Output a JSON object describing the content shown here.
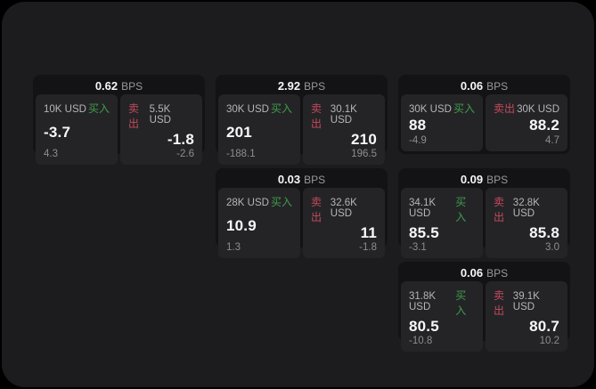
{
  "theme": {
    "page_bg": "#000000",
    "panel_bg": "#1c1c1e",
    "card_bg": "#131315",
    "tile_bg": "#242427",
    "text_primary": "#f8f8f9",
    "text_secondary": "#b5b5ba",
    "text_muted": "#8d8d92",
    "buy_color": "#3f9d4a",
    "sell_color": "#c54a5c"
  },
  "labels": {
    "bps": "BPS",
    "buy": "买入",
    "sell": "卖出"
  },
  "cards": [
    {
      "row": 1,
      "col": 1,
      "bps": "0.62",
      "buy": {
        "size": "10K USD",
        "price": "-3.7",
        "delta": "4.3"
      },
      "sell": {
        "size": "5.5K USD",
        "price": "-1.8",
        "delta": "-2.6"
      }
    },
    {
      "row": 1,
      "col": 2,
      "bps": "2.92",
      "buy": {
        "size": "30K USD",
        "price": "201",
        "delta": "-188.1"
      },
      "sell": {
        "size": "30.1K USD",
        "price": "210",
        "delta": "196.5"
      }
    },
    {
      "row": 1,
      "col": 3,
      "bps": "0.06",
      "buy": {
        "size": "30K USD",
        "price": "88",
        "delta": "-4.9"
      },
      "sell": {
        "size": "30K USD",
        "price": "88.2",
        "delta": "4.7"
      }
    },
    {
      "row": 2,
      "col": 2,
      "bps": "0.03",
      "buy": {
        "size": "28K USD",
        "price": "10.9",
        "delta": "1.3"
      },
      "sell": {
        "size": "32.6K USD",
        "price": "11",
        "delta": "-1.8"
      }
    },
    {
      "row": 2,
      "col": 3,
      "bps": "0.09",
      "buy": {
        "size": "34.1K USD",
        "price": "85.5",
        "delta": "-3.1"
      },
      "sell": {
        "size": "32.8K USD",
        "price": "85.8",
        "delta": "3.0"
      }
    },
    {
      "row": 3,
      "col": 3,
      "bps": "0.06",
      "buy": {
        "size": "31.8K USD",
        "price": "80.5",
        "delta": "-10.8"
      },
      "sell": {
        "size": "39.1K USD",
        "price": "80.7",
        "delta": "10.2"
      }
    }
  ]
}
